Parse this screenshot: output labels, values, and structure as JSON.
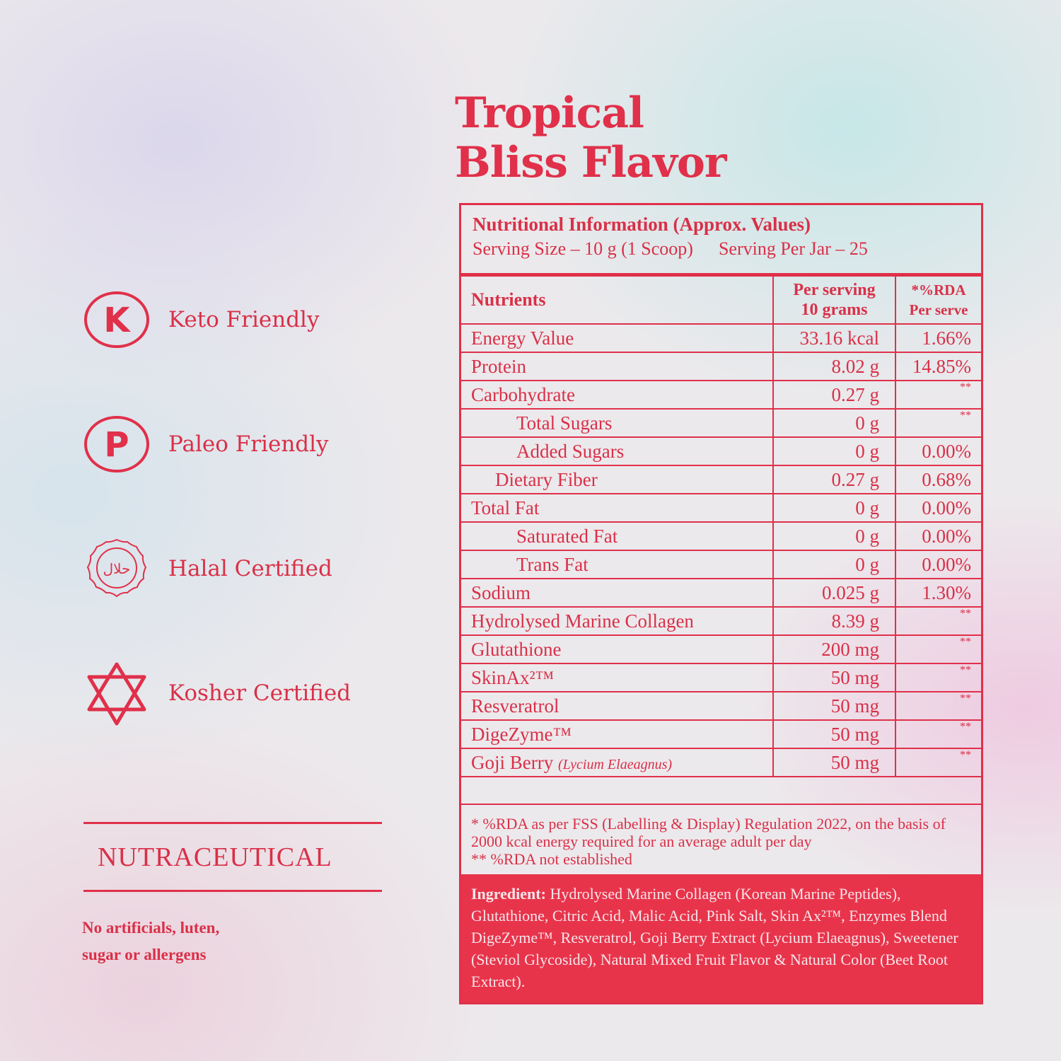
{
  "title": {
    "line1": "Tropical",
    "line2": "Bliss Flavor"
  },
  "badges": [
    {
      "icon": "keto-k-circle-icon",
      "label": "Keto Friendly"
    },
    {
      "icon": "paleo-p-circle-icon",
      "label": "Paleo Friendly"
    },
    {
      "icon": "halal-seal-icon",
      "label": "Halal Certified",
      "seal_text": "حلال"
    },
    {
      "icon": "star-of-david-icon",
      "label": "Kosher Certified"
    }
  ],
  "category": "NUTRACEUTICAL",
  "claim": {
    "line1": "No artificials, luten,",
    "line2": "sugar or allergens"
  },
  "nutrition": {
    "heading": "Nutritional Information (Approx. Values)",
    "serving_size": "Serving Size – 10 g (1 Scoop)",
    "servings_per_jar": "Serving Per Jar – 25",
    "columns": {
      "nutrients": "Nutrients",
      "per_serving_1": "Per serving",
      "per_serving_2": "10 grams",
      "rda_1": "*%RDA",
      "rda_2": "Per serve"
    },
    "rows": [
      {
        "name": "Energy Value",
        "value": "33.16 kcal",
        "rda": "1.66%",
        "indent": 0
      },
      {
        "name": "Protein",
        "value": "8.02 g",
        "rda": "14.85%",
        "indent": 0
      },
      {
        "name": "Carbohydrate",
        "value": "0.27 g",
        "rda": "**",
        "indent": 0
      },
      {
        "name": "Total Sugars",
        "value": "0 g",
        "rda": "**",
        "indent": 1
      },
      {
        "name": "Added Sugars",
        "value": "0 g",
        "rda": "0.00%",
        "indent": 1
      },
      {
        "name": "Dietary Fiber",
        "value": "0.27 g",
        "rda": "0.68%",
        "indent": 2
      },
      {
        "name": "Total Fat",
        "value": "0 g",
        "rda": "0.00%",
        "indent": 0
      },
      {
        "name": "Saturated Fat",
        "value": "0 g",
        "rda": "0.00%",
        "indent": 1
      },
      {
        "name": "Trans Fat",
        "value": "0 g",
        "rda": "0.00%",
        "indent": 1
      },
      {
        "name": "Sodium",
        "value": "0.025 g",
        "rda": "1.30%",
        "indent": 0
      },
      {
        "name": "Hydrolysed Marine Collagen",
        "value": "8.39 g",
        "rda": "**",
        "indent": 0
      },
      {
        "name": "Glutathione",
        "value": "200 mg",
        "rda": "**",
        "indent": 0
      },
      {
        "name": "SkinAx²™",
        "value": "50 mg",
        "rda": "**",
        "indent": 0
      },
      {
        "name": "Resveratrol",
        "value": "50 mg",
        "rda": "**",
        "indent": 0
      },
      {
        "name": "DigeZyme™",
        "value": "50 mg",
        "rda": "**",
        "indent": 0
      },
      {
        "name": "Goji Berry",
        "name_note": "(Lycium Elaeagnus)",
        "value": "50 mg",
        "rda": "**",
        "indent": 0
      }
    ],
    "footnote_1": "* %RDA as per FSS (Labelling & Display) Regulation 2022, on the basis of 2000 kcal energy required for an average adult per day",
    "footnote_2": "** %RDA not established",
    "ingredient_label": "Ingredient:",
    "ingredients": " Hydrolysed Marine Collagen (Korean Marine Peptides), Glutathione, Citric Acid, Malic Acid, Pink Salt, Skin Ax²™, Enzymes Blend DigeZyme™, Resveratrol, Goji Berry Extract (Lycium Elaeagnus), Sweetener (Steviol Glycoside), Natural Mixed Fruit Flavor & Natural Color (Beet Root Extract)."
  },
  "colors": {
    "accent": "#e0304a",
    "ingredient_bg": "#e8344b"
  }
}
